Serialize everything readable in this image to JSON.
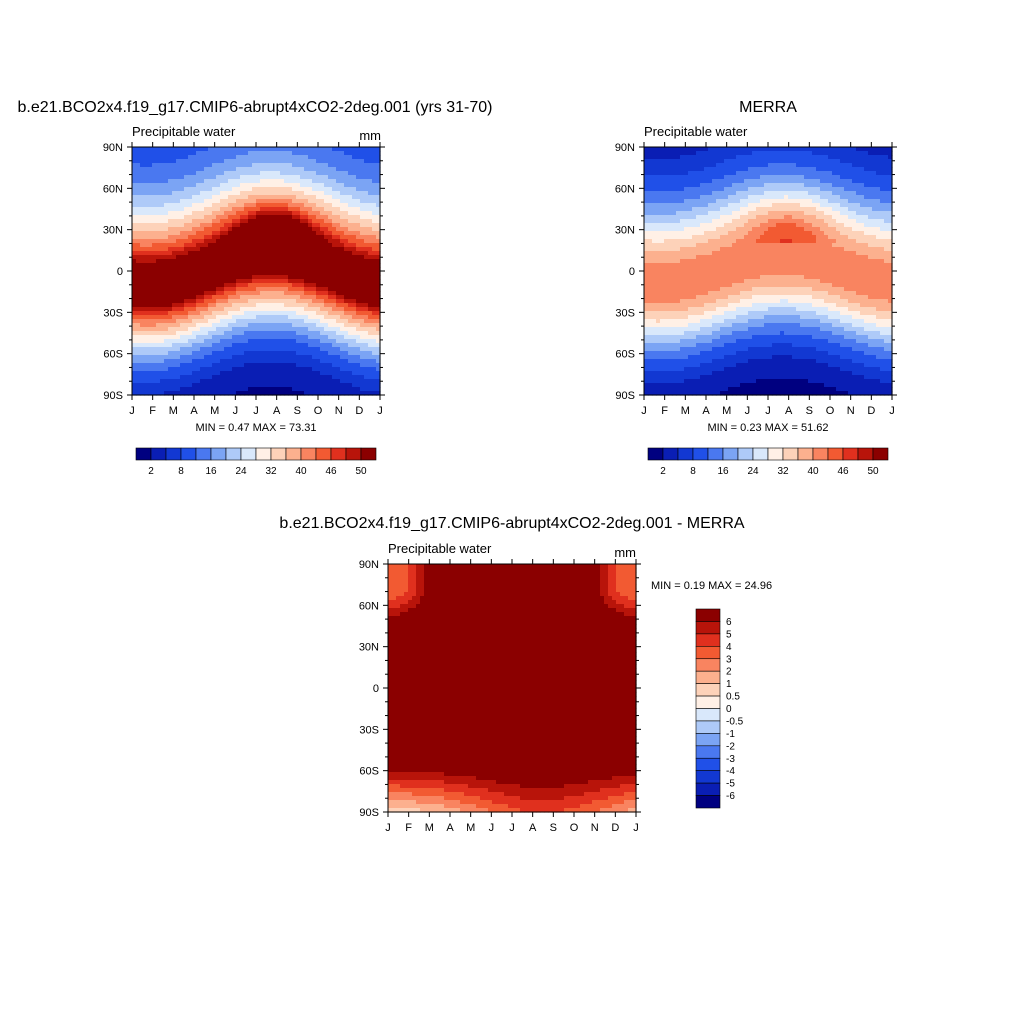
{
  "chart_data": [
    {
      "type": "heatmap",
      "title": "b.e21.BCO2x4.f19_g17.CMIP6-abrupt4xCO2-2deg.001 (yrs 31-70)",
      "variable_label": "Precipitable water",
      "units_label": "mm",
      "x_ticks": [
        "J",
        "F",
        "M",
        "A",
        "M",
        "J",
        "J",
        "A",
        "S",
        "O",
        "N",
        "D",
        "J"
      ],
      "y_ticks": [
        "90N",
        "60N",
        "30N",
        "0",
        "30S",
        "60S",
        "90S"
      ],
      "y_range": [
        -90,
        90
      ],
      "min_max_text": "MIN =   0.47 MAX =  73.31",
      "levels": [
        2,
        5,
        8,
        12,
        16,
        20,
        24,
        28,
        32,
        36,
        40,
        43,
        46,
        48,
        50
      ],
      "colorbar_labels": [
        "2",
        "8",
        "16",
        "24",
        "32",
        "40",
        "46",
        "50"
      ],
      "colorbar_orientation": "horizontal",
      "field": {
        "kind": "climatology",
        "equator_pw": 55,
        "pole_north": 8,
        "pole_south": 1,
        "seasonal_shift_deg": 12
      }
    },
    {
      "type": "heatmap",
      "title": "MERRA",
      "variable_label": "Precipitable water",
      "units_label": "",
      "x_ticks": [
        "J",
        "F",
        "M",
        "A",
        "M",
        "J",
        "J",
        "A",
        "S",
        "O",
        "N",
        "D",
        "J"
      ],
      "y_ticks": [
        "90N",
        "60N",
        "30N",
        "0",
        "30S",
        "60S",
        "90S"
      ],
      "y_range": [
        -90,
        90
      ],
      "min_max_text": "MIN =   0.23 MAX =  51.62",
      "levels": [
        2,
        5,
        8,
        12,
        16,
        20,
        24,
        28,
        32,
        36,
        40,
        43,
        46,
        48,
        50
      ],
      "colorbar_labels": [
        "2",
        "8",
        "16",
        "24",
        "32",
        "40",
        "46",
        "50"
      ],
      "colorbar_orientation": "horizontal",
      "field": {
        "kind": "climatology",
        "equator_pw": 43,
        "pole_north": 2,
        "pole_south": 0.5,
        "seasonal_shift_deg": 10
      }
    },
    {
      "type": "heatmap",
      "title": "b.e21.BCO2x4.f19_g17.CMIP6-abrupt4xCO2-2deg.001 - MERRA",
      "variable_label": "Precipitable water",
      "units_label": "mm",
      "x_ticks": [
        "J",
        "F",
        "M",
        "A",
        "M",
        "J",
        "J",
        "A",
        "S",
        "O",
        "N",
        "D",
        "J"
      ],
      "y_ticks": [
        "90N",
        "60N",
        "30N",
        "0",
        "30S",
        "60S",
        "90S"
      ],
      "y_range": [
        -90,
        90
      ],
      "min_max_text": "MIN =   0.19 MAX =  24.96",
      "levels": [
        -6,
        -5,
        -4,
        -3,
        -2,
        -1,
        -0.5,
        0,
        0.5,
        1,
        2,
        3,
        4,
        5,
        6
      ],
      "colorbar_labels": [
        "6",
        "5",
        "4",
        "3",
        "2",
        "1",
        "0.5",
        "0",
        "-0.5",
        "-1",
        "-2",
        "-3",
        "-4",
        "-5",
        "-6"
      ],
      "colorbar_orientation": "vertical",
      "field": {
        "kind": "difference"
      }
    }
  ],
  "palette": [
    "#000080",
    "#0a1eb4",
    "#1238d2",
    "#2050e8",
    "#4a78f0",
    "#7ba4f4",
    "#aecaf8",
    "#d9e8fb",
    "#fff0e6",
    "#fdd2b9",
    "#fcb08e",
    "#f98460",
    "#f25a32",
    "#e0301e",
    "#b8140a",
    "#8b0000"
  ]
}
